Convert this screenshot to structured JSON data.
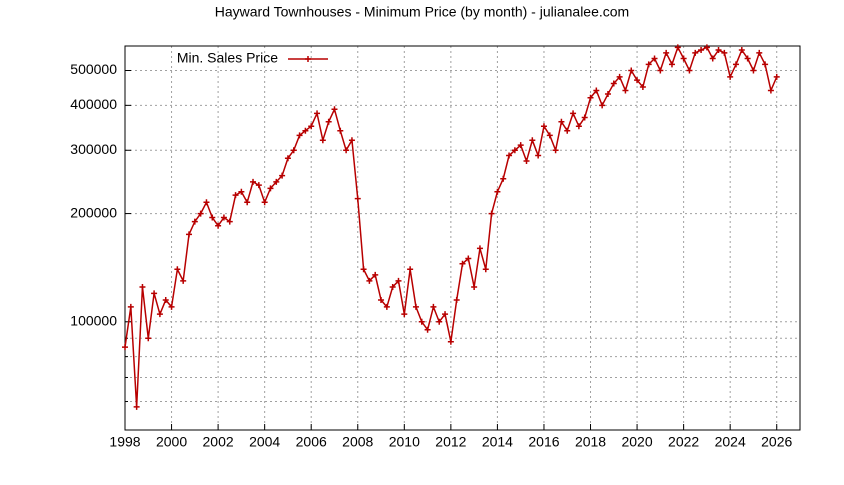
{
  "chart_data": {
    "type": "line",
    "title": "Hayward Townhouses - Minimum Price (by month) - julianalee.com",
    "log_y": true,
    "grid": true,
    "legend": "top-left",
    "xlim": [
      1998,
      2027
    ],
    "xticks": [
      1998,
      2000,
      2002,
      2004,
      2006,
      2008,
      2010,
      2012,
      2014,
      2016,
      2018,
      2020,
      2022,
      2024,
      2026
    ],
    "ylim": [
      50000,
      585000
    ],
    "yticks": [
      100000,
      200000,
      300000,
      400000,
      500000
    ],
    "yminor": [
      60000,
      70000,
      80000,
      90000
    ],
    "x": [
      1998,
      1998.25,
      1998.5,
      1998.75,
      1999,
      1999.25,
      1999.5,
      1999.75,
      2000,
      2000.25,
      2000.5,
      2000.75,
      2001,
      2001.25,
      2001.5,
      2001.75,
      2002,
      2002.25,
      2002.5,
      2002.75,
      2003,
      2003.25,
      2003.5,
      2003.75,
      2004,
      2004.25,
      2004.5,
      2004.75,
      2005,
      2005.25,
      2005.5,
      2005.75,
      2006,
      2006.25,
      2006.5,
      2006.75,
      2007,
      2007.25,
      2007.5,
      2007.75,
      2008,
      2008.25,
      2008.5,
      2008.75,
      2009,
      2009.25,
      2009.5,
      2009.75,
      2010,
      2010.25,
      2010.5,
      2010.75,
      2011,
      2011.25,
      2011.5,
      2011.75,
      2012,
      2012.25,
      2012.5,
      2012.75,
      2013,
      2013.25,
      2013.5,
      2013.75,
      2014,
      2014.25,
      2014.5,
      2014.75,
      2015,
      2015.25,
      2015.5,
      2015.75,
      2016,
      2016.25,
      2016.5,
      2016.75,
      2017,
      2017.25,
      2017.5,
      2017.75,
      2018,
      2018.25,
      2018.5,
      2018.75,
      2019,
      2019.25,
      2019.5,
      2019.75,
      2020,
      2020.25,
      2020.5,
      2020.75,
      2021,
      2021.25,
      2021.5,
      2021.75,
      2022,
      2022.25,
      2022.5,
      2022.75,
      2023,
      2023.25,
      2023.5,
      2023.75,
      2024,
      2024.25,
      2024.5,
      2024.75,
      2025,
      2025.25,
      2025.5,
      2025.75,
      2026
    ],
    "series": [
      {
        "name": "Min. Sales Price",
        "color": "#b80000",
        "values": [
          85000,
          110000,
          58000,
          125000,
          90000,
          120000,
          105000,
          115000,
          110000,
          140000,
          130000,
          175000,
          190000,
          200000,
          215000,
          195000,
          185000,
          195000,
          190000,
          225000,
          230000,
          215000,
          245000,
          240000,
          215000,
          235000,
          245000,
          255000,
          285000,
          300000,
          330000,
          340000,
          350000,
          380000,
          320000,
          360000,
          390000,
          340000,
          300000,
          320000,
          220000,
          140000,
          130000,
          135000,
          115000,
          110000,
          125000,
          130000,
          105000,
          140000,
          110000,
          100000,
          95000,
          110000,
          100000,
          105000,
          88000,
          115000,
          145000,
          150000,
          125000,
          160000,
          140000,
          200000,
          230000,
          250000,
          290000,
          300000,
          310000,
          280000,
          320000,
          290000,
          350000,
          330000,
          300000,
          360000,
          340000,
          380000,
          350000,
          370000,
          420000,
          440000,
          400000,
          430000,
          460000,
          480000,
          440000,
          500000,
          470000,
          450000,
          520000,
          540000,
          500000,
          560000,
          520000,
          580000,
          540000,
          500000,
          560000,
          570000,
          580000,
          540000,
          570000,
          560000,
          480000,
          520000,
          570000,
          540000,
          500000,
          560000,
          520000,
          440000,
          480000
        ]
      }
    ]
  }
}
